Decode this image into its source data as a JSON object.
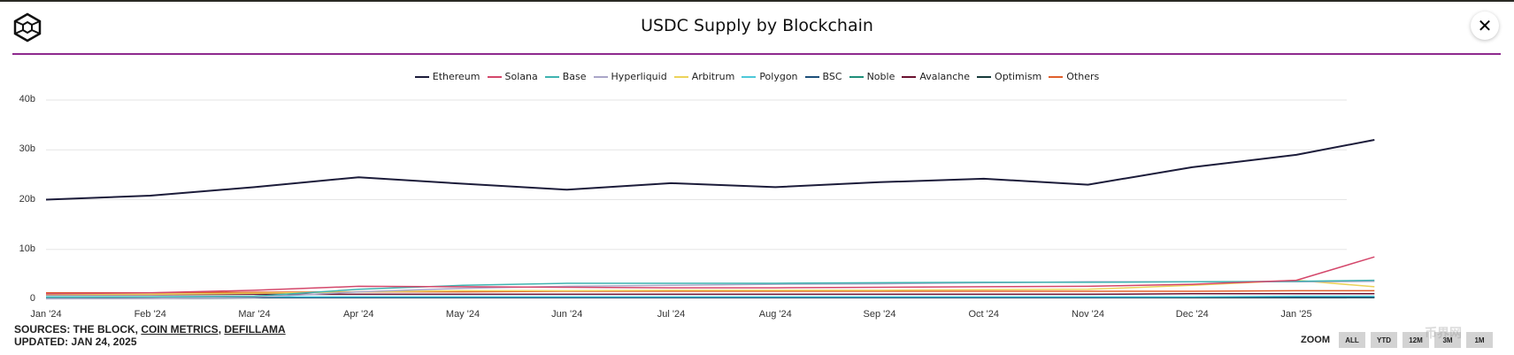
{
  "header": {
    "title": "USDC Supply by Blockchain",
    "close_label": "✕"
  },
  "colors": {
    "divider": "#8e2a8e",
    "grid": "#e6e6e6"
  },
  "footer": {
    "sources_prefix": "SOURCES: THE BLOCK, ",
    "source_coin_metrics": "COIN METRICS",
    "separator": ", ",
    "source_defillama": "DEFILLAMA",
    "updated": "UPDATED: JAN 24, 2025"
  },
  "zoom": {
    "label": "ZOOM",
    "buttons": [
      "ALL",
      "YTD",
      "12M",
      "3M",
      "1M"
    ]
  },
  "watermark": "币界网",
  "chart_data": {
    "type": "line",
    "title": "USDC Supply by Blockchain",
    "xlabel": "",
    "ylabel": "",
    "ylim": [
      0,
      40
    ],
    "y_unit": "b",
    "yticks": [
      0,
      10,
      20,
      30,
      40
    ],
    "ytick_labels": [
      "0",
      "10b",
      "20b",
      "30b",
      "40b"
    ],
    "grid": true,
    "legend_position": "top-center",
    "x": [
      "Jan '24",
      "Feb '24",
      "Mar '24",
      "Apr '24",
      "May '24",
      "Jun '24",
      "Jul '24",
      "Aug '24",
      "Sep '24",
      "Oct '24",
      "Nov '24",
      "Dec '24",
      "Jan '25",
      "Jan 24 '25"
    ],
    "xtick_labels": [
      "Jan '24",
      "Feb '24",
      "Mar '24",
      "Apr '24",
      "May '24",
      "Jun '24",
      "Jul '24",
      "Aug '24",
      "Sep '24",
      "Oct '24",
      "Nov '24",
      "Dec '24",
      "Jan '25"
    ],
    "series": [
      {
        "name": "Ethereum",
        "color": "#1c1c3a",
        "values": [
          20.0,
          20.8,
          22.5,
          24.5,
          23.2,
          22.0,
          23.3,
          22.5,
          23.5,
          24.2,
          23.0,
          26.5,
          29.0,
          32.0
        ]
      },
      {
        "name": "Solana",
        "color": "#d4476b",
        "values": [
          1.1,
          1.3,
          1.8,
          2.6,
          2.5,
          2.4,
          2.3,
          2.3,
          2.4,
          2.5,
          2.6,
          3.0,
          3.8,
          8.5
        ]
      },
      {
        "name": "Base",
        "color": "#3fb3b0",
        "values": [
          0.4,
          0.5,
          0.6,
          2.0,
          2.8,
          3.2,
          3.2,
          3.2,
          3.3,
          3.4,
          3.4,
          3.5,
          3.6,
          3.8
        ]
      },
      {
        "name": "Hyperliquid",
        "color": "#aaa6c8",
        "values": [
          0.1,
          0.2,
          0.4,
          1.5,
          2.2,
          2.6,
          2.8,
          3.0,
          3.1,
          3.3,
          3.5,
          3.5,
          3.5,
          3.6
        ]
      },
      {
        "name": "Arbitrum",
        "color": "#ecd35a",
        "values": [
          1.0,
          1.0,
          1.2,
          1.5,
          1.7,
          1.7,
          1.8,
          1.8,
          1.8,
          1.9,
          2.0,
          2.8,
          3.8,
          2.5
        ]
      },
      {
        "name": "Polygon",
        "color": "#4dc8d8",
        "values": [
          0.5,
          0.5,
          0.5,
          0.5,
          0.5,
          0.5,
          0.5,
          0.5,
          0.5,
          0.5,
          0.5,
          0.5,
          0.6,
          0.6
        ]
      },
      {
        "name": "BSC",
        "color": "#1c4f7a",
        "values": [
          0.2,
          0.2,
          0.3,
          0.3,
          0.3,
          0.3,
          0.3,
          0.3,
          0.3,
          0.3,
          0.3,
          0.4,
          0.4,
          0.4
        ]
      },
      {
        "name": "Noble",
        "color": "#1f8f7a",
        "values": [
          0.2,
          0.3,
          0.3,
          0.3,
          0.3,
          0.3,
          0.3,
          0.3,
          0.3,
          0.3,
          0.3,
          0.4,
          0.4,
          0.4
        ]
      },
      {
        "name": "Avalanche",
        "color": "#6b1230",
        "values": [
          0.9,
          0.9,
          1.0,
          1.0,
          1.0,
          1.0,
          1.0,
          1.0,
          1.0,
          1.0,
          1.0,
          1.1,
          1.1,
          1.1
        ]
      },
      {
        "name": "Optimism",
        "color": "#173a3a",
        "values": [
          0.3,
          0.3,
          0.3,
          0.3,
          0.3,
          0.3,
          0.3,
          0.3,
          0.3,
          0.3,
          0.3,
          0.3,
          0.3,
          0.3
        ]
      },
      {
        "name": "Others",
        "color": "#e0602c",
        "values": [
          1.3,
          1.3,
          1.4,
          1.5,
          1.5,
          1.6,
          1.6,
          1.6,
          1.6,
          1.6,
          1.6,
          1.6,
          1.7,
          1.7
        ]
      }
    ]
  }
}
